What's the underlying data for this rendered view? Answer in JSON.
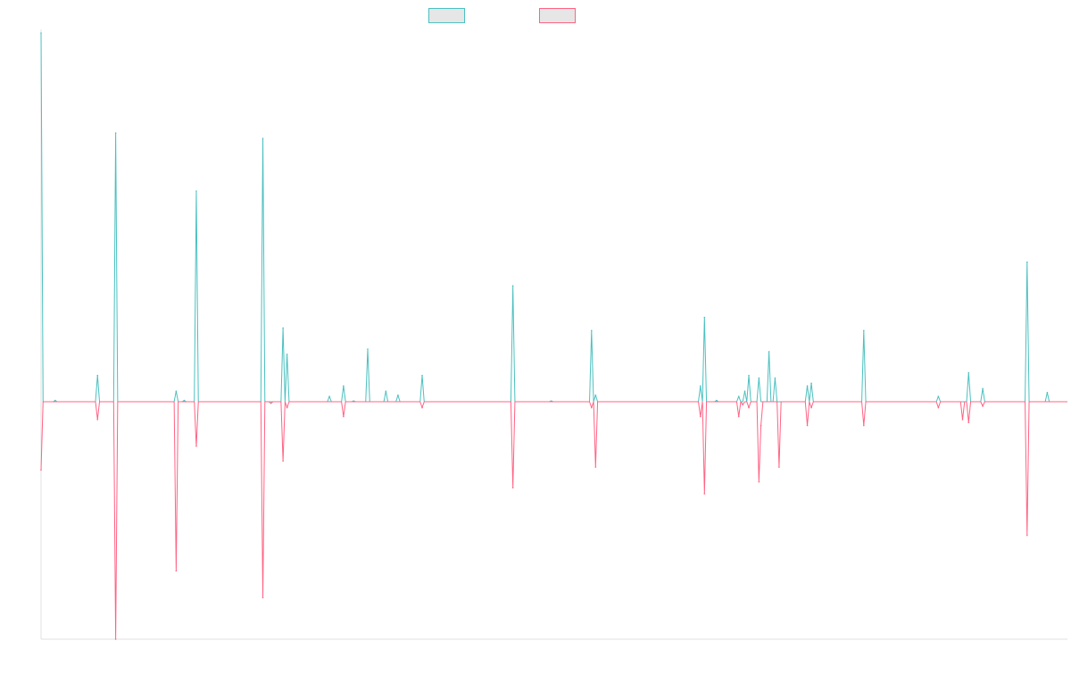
{
  "chart_data": {
    "type": "line",
    "title": "",
    "xlabel": "",
    "ylabel": "",
    "legend": {
      "position": "top-center",
      "entries": [
        {
          "name": "",
          "color": "#4bc0c0"
        },
        {
          "name": "",
          "color": "#ff6384"
        }
      ]
    },
    "grid": false,
    "x_ticks_visible": false,
    "y_ticks_visible": false,
    "x_count": 510,
    "ylim": [
      -100,
      100
    ],
    "colors": {
      "series_1": "#4bc0c0",
      "series_2": "#ff6384",
      "axis": "#e0e0e0"
    },
    "series": [
      {
        "color": "#4bc0c0",
        "spikes": [
          [
            0,
            140
          ],
          [
            7,
            0.5
          ],
          [
            28,
            10
          ],
          [
            37,
            102
          ],
          [
            67,
            4
          ],
          [
            71,
            0.5
          ],
          [
            77,
            80
          ],
          [
            110,
            100
          ],
          [
            120,
            28
          ],
          [
            122,
            18
          ],
          [
            143,
            2
          ],
          [
            150,
            6
          ],
          [
            155,
            0.3
          ],
          [
            162,
            20
          ],
          [
            171,
            4
          ],
          [
            177,
            2.5
          ],
          [
            189,
            10
          ],
          [
            234,
            44
          ],
          [
            253,
            0.3
          ],
          [
            273,
            27
          ],
          [
            275,
            2.5
          ],
          [
            327,
            6
          ],
          [
            329,
            32
          ],
          [
            335,
            0.5
          ],
          [
            346,
            2
          ],
          [
            349,
            4
          ],
          [
            351,
            10
          ],
          [
            356,
            9
          ],
          [
            361,
            19
          ],
          [
            364,
            9
          ],
          [
            380,
            6
          ],
          [
            382,
            7
          ],
          [
            408,
            27
          ],
          [
            445,
            2
          ],
          [
            460,
            11
          ],
          [
            467,
            5
          ],
          [
            489,
            53
          ],
          [
            499,
            3.5
          ]
        ]
      },
      {
        "color": "#ff6384",
        "spikes": [
          [
            0,
            -23
          ],
          [
            28,
            -6
          ],
          [
            37,
            -80
          ],
          [
            67,
            -57
          ],
          [
            77,
            -15
          ],
          [
            110,
            -66
          ],
          [
            114,
            -0.5
          ],
          [
            120,
            -20
          ],
          [
            122,
            -2
          ],
          [
            150,
            -5
          ],
          [
            189,
            -2
          ],
          [
            234,
            -29
          ],
          [
            273,
            -2
          ],
          [
            275,
            -22
          ],
          [
            327,
            -5
          ],
          [
            329,
            -31
          ],
          [
            346,
            -5
          ],
          [
            348,
            -1
          ],
          [
            351,
            -2
          ],
          [
            356,
            -27
          ],
          [
            357,
            -8
          ],
          [
            366,
            -22
          ],
          [
            380,
            -8
          ],
          [
            382,
            -2
          ],
          [
            408,
            -8
          ],
          [
            445,
            -2
          ],
          [
            457,
            -6
          ],
          [
            460,
            -7
          ],
          [
            467,
            -1.5
          ],
          [
            489,
            -45
          ]
        ]
      }
    ]
  }
}
